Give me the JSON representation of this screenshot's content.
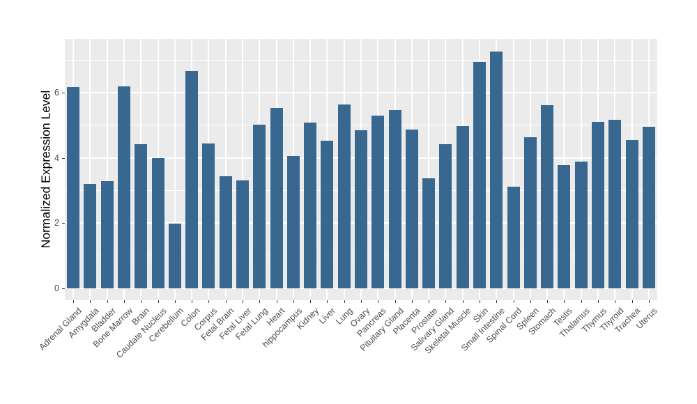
{
  "figure": {
    "type": "bar-chart",
    "background_color": "#ffffff",
    "panel_color": "#ebebeb",
    "gridline_color": "#ffffff",
    "bar_color": "#38678f",
    "axis_text_color": "#4d4d4d",
    "axis_title_color": "#000000"
  },
  "chart_data": {
    "type": "bar",
    "title": "",
    "xlabel": "",
    "ylabel": "Normalized Expression Level",
    "ylim": [
      0,
      7.64
    ],
    "y_major_ticks": [
      0,
      2,
      4,
      6
    ],
    "y_minor_ticks": [
      1,
      3,
      5,
      7
    ],
    "grid": true,
    "legend_position": "none",
    "categories": [
      "Adrenal Gland",
      "Amygdala",
      "Bladder",
      "Bone Marrow",
      "Brain",
      "Caudate Nucleus",
      "Cerebellum",
      "Colon",
      "Corpus",
      "Fetal Brain",
      "Fetal Liver",
      "Fetal Lung",
      "Heart",
      "hippocampus",
      "Kidney",
      "Liver",
      "Lung",
      "Ovary",
      "Pancreas",
      "Pituitary Gland",
      "Placenta",
      "Prostate",
      "Salivary Gland",
      "Skeletal Muscle",
      "Skin",
      "Small Intestine",
      "Spinal Cord",
      "Spleen",
      "Stomach",
      "Testis",
      "Thalamus",
      "Thymus",
      "Thyroid",
      "Trachea",
      "Uterus"
    ],
    "values": [
      6.17,
      3.2,
      3.29,
      6.2,
      4.41,
      3.99,
      1.99,
      6.67,
      4.44,
      3.43,
      3.31,
      5.02,
      5.54,
      4.06,
      5.09,
      4.52,
      5.64,
      4.85,
      5.3,
      5.47,
      4.87,
      3.38,
      4.41,
      4.98,
      6.93,
      7.27,
      3.11,
      4.63,
      5.62,
      3.77,
      3.89,
      5.1,
      5.16,
      4.55,
      4.95
    ]
  }
}
